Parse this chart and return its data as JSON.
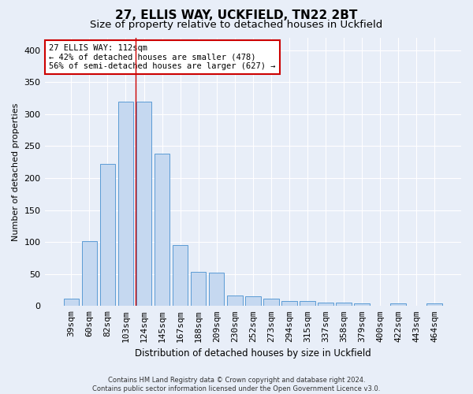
{
  "title1": "27, ELLIS WAY, UCKFIELD, TN22 2BT",
  "title2": "Size of property relative to detached houses in Uckfield",
  "xlabel": "Distribution of detached houses by size in Uckfield",
  "ylabel": "Number of detached properties",
  "categories": [
    "39sqm",
    "60sqm",
    "82sqm",
    "103sqm",
    "124sqm",
    "145sqm",
    "167sqm",
    "188sqm",
    "209sqm",
    "230sqm",
    "252sqm",
    "273sqm",
    "294sqm",
    "315sqm",
    "337sqm",
    "358sqm",
    "379sqm",
    "400sqm",
    "422sqm",
    "443sqm",
    "464sqm"
  ],
  "values": [
    12,
    102,
    222,
    320,
    320,
    238,
    95,
    53,
    52,
    17,
    15,
    12,
    8,
    8,
    5,
    5,
    4,
    0,
    4,
    0,
    4
  ],
  "bar_color": "#c5d8f0",
  "bar_edge_color": "#5b9bd5",
  "background_color": "#e8eef8",
  "grid_color": "#ffffff",
  "vline_x": 3.55,
  "vline_color": "#cc0000",
  "annotation_text": "27 ELLIS WAY: 112sqm\n← 42% of detached houses are smaller (478)\n56% of semi-detached houses are larger (627) →",
  "annotation_box_color": "#ffffff",
  "annotation_box_edge": "#cc0000",
  "footnote": "Contains HM Land Registry data © Crown copyright and database right 2024.\nContains public sector information licensed under the Open Government Licence v3.0.",
  "ylim": [
    0,
    420
  ],
  "title1_fontsize": 11,
  "title2_fontsize": 9.5,
  "yticks": [
    0,
    50,
    100,
    150,
    200,
    250,
    300,
    350,
    400
  ]
}
